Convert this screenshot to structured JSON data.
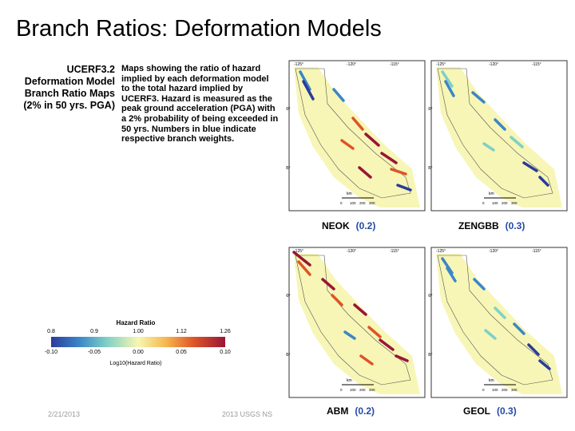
{
  "slide": {
    "title": "Branch Ratios: Deformation Models",
    "side_title": "UCERF3.2 Deformation Model Branch Ratio Maps (2% in 50 yrs. PGA)",
    "description": "Maps showing the ratio of hazard implied by each deformation model to the total hazard implied by UCERF3. Hazard is measured as the peak ground acceleration (PGA) with a 2% probability of being exceeded in 50 yrs. Numbers in blue indicate respective branch weights."
  },
  "legend": {
    "title": "Hazard Ratio",
    "top_ticks": [
      "0.8",
      "0.9",
      "1.00",
      "1.12",
      "1.26"
    ],
    "bottom_ticks": [
      "-0.10",
      "-0.05",
      "0.00",
      "0.05",
      "0.10"
    ],
    "xlabel": "Log10(Hazard Ratio)",
    "colors": [
      "#2b3b9a",
      "#3a86c9",
      "#7fd0c6",
      "#f7f7b0",
      "#f6b64e",
      "#de5427",
      "#991538"
    ]
  },
  "maps": [
    {
      "name": "NEOK",
      "weight": "(0.2)",
      "lon_ticks": [
        "-125°",
        "-120°",
        "-115°"
      ],
      "lat_ticks": [
        "40°",
        "35°"
      ],
      "scale_label": "km",
      "scale_ticks": [
        "0",
        "100",
        "200",
        "300"
      ]
    },
    {
      "name": "ZENGBB",
      "weight": "(0.3)",
      "lon_ticks": [
        "-125°",
        "-120°",
        "-115°"
      ],
      "lat_ticks": [
        "40°",
        "35°"
      ],
      "scale_label": "km",
      "scale_ticks": [
        "0",
        "100",
        "200",
        "300"
      ]
    },
    {
      "name": "ABM",
      "weight": "(0.2)",
      "lon_ticks": [
        "-125°",
        "-120°",
        "-115°"
      ],
      "lat_ticks": [
        "40°",
        "35°"
      ],
      "scale_label": "km",
      "scale_ticks": [
        "0",
        "100",
        "200",
        "300"
      ]
    },
    {
      "name": "GEOL",
      "weight": "(0.3)",
      "lon_ticks": [
        "-125°",
        "-120°",
        "-115°"
      ],
      "lat_ticks": [
        "40°",
        "35°"
      ],
      "scale_label": "km",
      "scale_ticks": [
        "0",
        "100",
        "200",
        "300"
      ]
    }
  ],
  "footer": {
    "date": "2/21/2013",
    "meeting": "2013 USGS NS"
  }
}
